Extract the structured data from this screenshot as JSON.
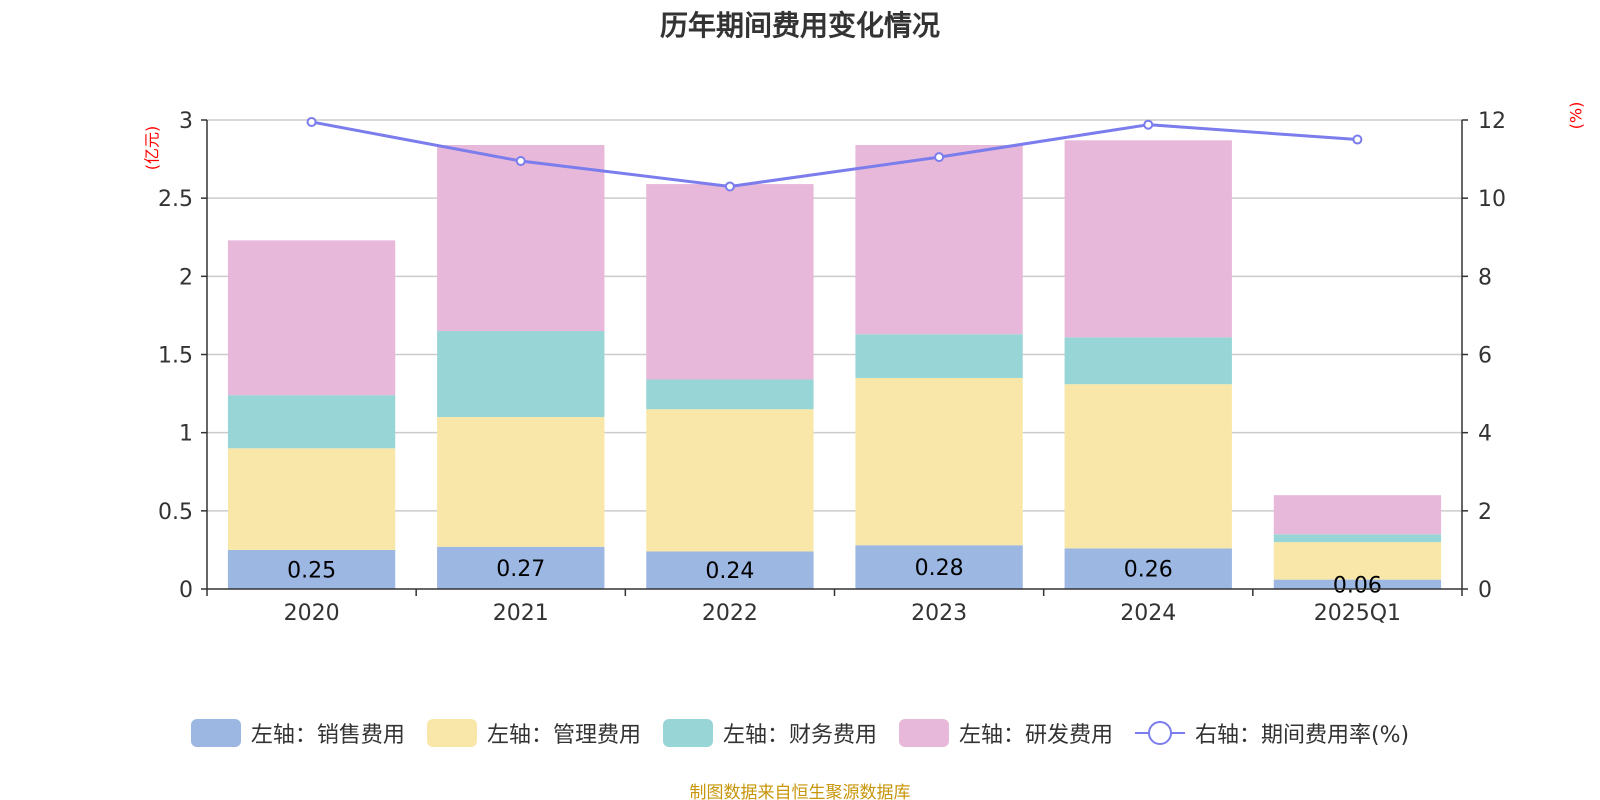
{
  "chart_data": {
    "type": "bar",
    "title": "历年期间费用变化情况",
    "categories": [
      "2020",
      "2021",
      "2022",
      "2023",
      "2024",
      "2025Q1"
    ],
    "y_left": {
      "unit": "(亿元)",
      "ylim": [
        0,
        3
      ],
      "ticks": [
        "0",
        "0.5",
        "1",
        "1.5",
        "2",
        "2.5",
        "3"
      ]
    },
    "y_right": {
      "unit": "(%)",
      "ylim": [
        0,
        12
      ],
      "ticks": [
        "0",
        "2",
        "4",
        "6",
        "8",
        "10",
        "12"
      ]
    },
    "stacked": true,
    "grid": true,
    "legend_position": "bottom",
    "series": [
      {
        "name": "左轴：销售费用",
        "axis": "left",
        "color": "#9bb7e2",
        "values": [
          0.25,
          0.27,
          0.24,
          0.28,
          0.26,
          0.06
        ],
        "labels": [
          "0.25",
          "0.27",
          "0.24",
          "0.28",
          "0.26",
          "0.06"
        ]
      },
      {
        "name": "左轴：管理费用",
        "axis": "left",
        "color": "#f8e7a8",
        "values": [
          0.65,
          0.83,
          0.91,
          1.07,
          1.05,
          0.24
        ]
      },
      {
        "name": "左轴：财务费用",
        "axis": "left",
        "color": "#98d5d6",
        "values": [
          0.34,
          0.55,
          0.19,
          0.28,
          0.3,
          0.05
        ]
      },
      {
        "name": "左轴：研发费用",
        "axis": "left",
        "color": "#e7b8d9",
        "values": [
          0.99,
          1.19,
          1.25,
          1.21,
          1.26,
          0.25
        ]
      },
      {
        "name": "右轴：期间费用率(%)",
        "axis": "right",
        "type": "line",
        "color": "#7b7ded",
        "values": [
          11.95,
          10.95,
          10.3,
          11.05,
          11.88,
          11.5
        ]
      }
    ],
    "source": "制图数据来自恒生聚源数据库"
  }
}
